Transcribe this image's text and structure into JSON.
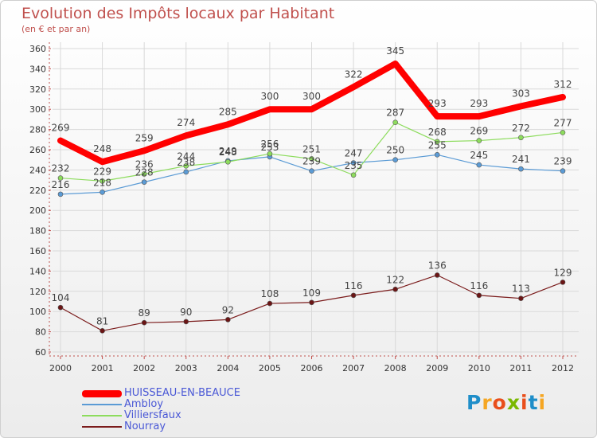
{
  "title": "Evolution des Impôts locaux par Habitant",
  "subtitle": "(en € et par an)",
  "colors": {
    "accent": "#c0504d",
    "legend_text": "#4a58d6"
  },
  "logo": {
    "text": "Proxiti",
    "letters": [
      "P",
      "r",
      "o",
      "x",
      "i",
      "t",
      "i"
    ],
    "colors": [
      "#1f8ec9",
      "#f5a623",
      "#e94e1b",
      "#7ab800",
      "#e94e1b",
      "#1f8ec9",
      "#f5a623"
    ]
  },
  "chart_data": {
    "type": "line",
    "x": [
      "2000",
      "2001",
      "2002",
      "2003",
      "2004",
      "2005",
      "2006",
      "2007",
      "2008",
      "2009",
      "2010",
      "2011",
      "2012"
    ],
    "ylim": [
      60,
      360
    ],
    "yticks": [
      60,
      80,
      100,
      120,
      140,
      160,
      180,
      200,
      220,
      240,
      260,
      280,
      300,
      320,
      340,
      360
    ],
    "grid": true,
    "legend_position": "bottom-left",
    "series": [
      {
        "name": "HUISSEAU-EN-BEAUCE",
        "color": "#ff0000",
        "values": [
          269,
          248,
          259,
          274,
          285,
          300,
          300,
          322,
          345,
          293,
          293,
          303,
          312
        ]
      },
      {
        "name": "Ambloy",
        "color": "#5b9bd5",
        "values": [
          216,
          218,
          228,
          238,
          249,
          253,
          239,
          247,
          250,
          255,
          245,
          241,
          239
        ]
      },
      {
        "name": "Villiersfaux",
        "color": "#8ddc5d",
        "values": [
          232,
          229,
          236,
          244,
          248,
          256,
          251,
          235,
          287,
          268,
          269,
          272,
          277
        ]
      },
      {
        "name": "Nourray",
        "color": "#7b1c1c",
        "values": [
          104,
          81,
          89,
          90,
          92,
          108,
          109,
          116,
          122,
          136,
          116,
          113,
          129
        ]
      }
    ]
  }
}
